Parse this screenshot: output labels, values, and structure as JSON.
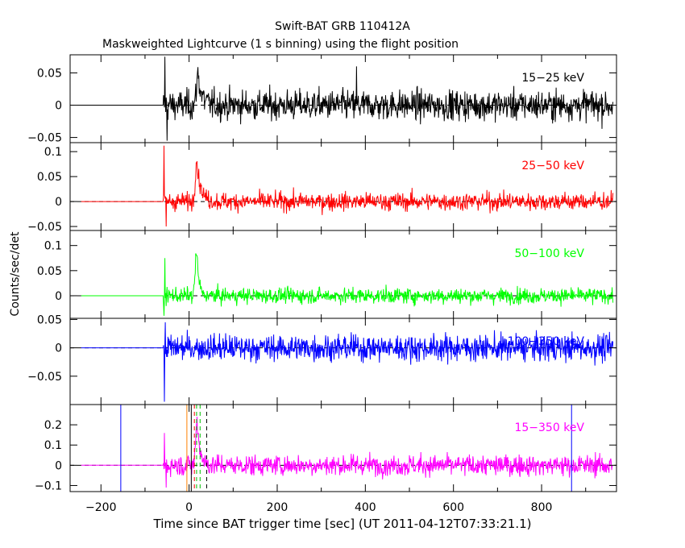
{
  "title": "Swift-BAT GRB 110412A",
  "subtitle": "Maskweighted Lightcurve (1 s binning) using the flight position",
  "xlabel": "Time since BAT trigger time [sec] (UT 2011-04-12T07:33:21.1)",
  "ylabel": "Counts/sec/det",
  "chart_data": {
    "type": "line",
    "x_range": [
      -270,
      970
    ],
    "x_ticks": [
      -200,
      0,
      200,
      400,
      600,
      800
    ],
    "x_tick_labels": [
      "−200",
      "0",
      "200",
      "400",
      "600",
      "800"
    ],
    "data_start": -245,
    "source_start": -58,
    "data_end": 962,
    "panels": [
      {
        "label": "15−25 keV",
        "color": "#000000",
        "ylim": [
          -0.058,
          0.078
        ],
        "y_ticks": [
          0.05,
          0,
          -0.05
        ],
        "y_tick_labels": [
          "0.05",
          "0",
          "−0.05"
        ],
        "noise": 0.018,
        "peaks": [
          {
            "t": 20,
            "amp": 0.05,
            "w": 8
          }
        ],
        "spikes": [
          {
            "t": -55,
            "v": 0.075
          },
          {
            "t": -50,
            "v": -0.055
          },
          {
            "t": 380,
            "v": 0.06
          }
        ]
      },
      {
        "label": "25−50 keV",
        "color": "#ff0000",
        "ylim": [
          -0.058,
          0.118
        ],
        "y_ticks": [
          0.1,
          0.05,
          0,
          -0.05
        ],
        "y_tick_labels": [
          "0.1",
          "0.05",
          "0",
          "−0.05"
        ],
        "noise": 0.014,
        "peaks": [
          {
            "t": 17,
            "amp": 0.085,
            "w": 9
          }
        ],
        "spikes": [
          {
            "t": -57,
            "v": 0.112
          },
          {
            "t": -52,
            "v": -0.05
          }
        ]
      },
      {
        "label": "50−100 keV",
        "color": "#00ff00",
        "ylim": [
          -0.045,
          0.13
        ],
        "y_ticks": [
          0.1,
          0.05,
          0
        ],
        "y_tick_labels": [
          "0.1",
          "0.05",
          "0"
        ],
        "noise": 0.012,
        "peaks": [
          {
            "t": 17,
            "amp": 0.09,
            "w": 5
          }
        ],
        "spikes": [
          {
            "t": -55,
            "v": 0.075
          },
          {
            "t": -57,
            "v": -0.04
          }
        ]
      },
      {
        "label": "100−350 keV",
        "color": "#0000ff",
        "ylim": [
          -0.1,
          0.052
        ],
        "y_ticks": [
          0.05,
          0,
          -0.05
        ],
        "y_tick_labels": [
          "0.05",
          "0",
          "−0.05"
        ],
        "noise": 0.018,
        "peaks": [],
        "spikes": [
          {
            "t": -56,
            "v": -0.095
          },
          {
            "t": -54,
            "v": 0.045
          }
        ]
      },
      {
        "label": "15−350 keV",
        "color": "#ff00ff",
        "ylim": [
          -0.13,
          0.3
        ],
        "y_ticks": [
          0.2,
          0.1,
          0,
          -0.1
        ],
        "y_tick_labels": [
          "0.2",
          "0.1",
          "0",
          "−0.1"
        ],
        "noise": 0.04,
        "peaks": [
          {
            "t": 18,
            "amp": 0.22,
            "w": 7
          }
        ],
        "spikes": [
          {
            "t": -56,
            "v": 0.16
          },
          {
            "t": -52,
            "v": -0.11
          }
        ],
        "markers": [
          {
            "t": -155,
            "color": "#0000ff",
            "dash": false
          },
          {
            "t": 868,
            "color": "#0000ff",
            "dash": false
          },
          {
            "t": -5,
            "color": "#ff8000",
            "dash": false
          },
          {
            "t": 5,
            "color": "#000000",
            "dash": false
          },
          {
            "t": 12,
            "color": "#ff0000",
            "dash": true
          },
          {
            "t": 17,
            "color": "#00c000",
            "dash": true
          },
          {
            "t": 25,
            "color": "#00c000",
            "dash": true
          },
          {
            "t": 40,
            "color": "#000000",
            "dash": true
          }
        ]
      }
    ]
  }
}
